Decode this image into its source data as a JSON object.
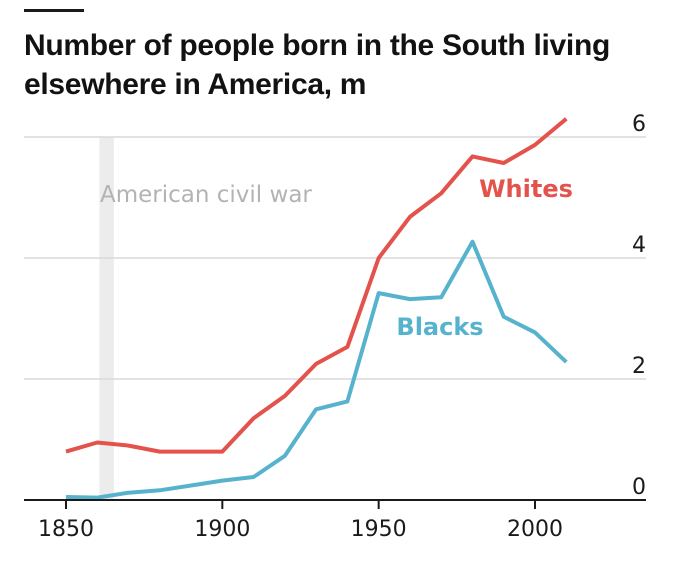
{
  "chart_data": {
    "type": "line",
    "title": "Number of people born in the South living elsewhere in America, m",
    "x": [
      1850,
      1860,
      1870,
      1880,
      1890,
      1900,
      1910,
      1920,
      1930,
      1940,
      1950,
      1960,
      1970,
      1980,
      1990,
      2000,
      2010
    ],
    "series": [
      {
        "name": "Whites",
        "color": "#e3524b",
        "values": [
          0.8,
          0.95,
          0.9,
          0.8,
          0.8,
          0.8,
          1.35,
          1.72,
          2.25,
          2.53,
          4.0,
          4.68,
          5.07,
          5.68,
          5.57,
          5.87,
          6.3
        ]
      },
      {
        "name": "Blacks",
        "color": "#57b3cd",
        "values": [
          0.05,
          0.04,
          0.12,
          0.16,
          0.24,
          0.32,
          0.38,
          0.73,
          1.5,
          1.63,
          3.42,
          3.32,
          3.35,
          4.27,
          3.03,
          2.77,
          2.28
        ]
      }
    ],
    "xlim": [
      1837,
      2034
    ],
    "ylim": [
      0,
      6
    ],
    "x_ticks": [
      "1850",
      "1900",
      "1950",
      "2000"
    ],
    "y_ticks": [
      "0",
      "2",
      "4",
      "6"
    ],
    "grid": true,
    "annotation": {
      "text": "American civil war",
      "x_range": [
        1861,
        1865
      ],
      "band_color": "#ececec"
    },
    "axis_color": "#1a1a1a",
    "grid_color": "#d9d9d9"
  }
}
